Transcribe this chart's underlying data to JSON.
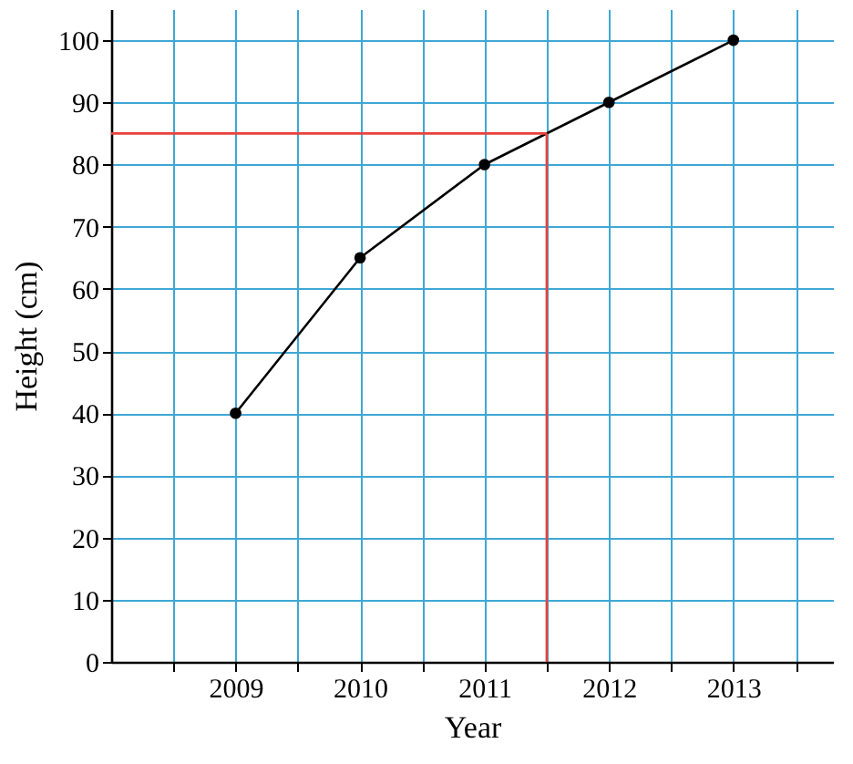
{
  "chart_data": {
    "type": "line",
    "xlabel": "Year",
    "ylabel": "Height (cm)",
    "x": [
      2009,
      2010,
      2011,
      2012,
      2013
    ],
    "series": [
      {
        "color": "#000000",
        "values": [
          40,
          65,
          80,
          90,
          100
        ]
      }
    ],
    "xlim": [
      2008,
      2013.8
    ],
    "xticks": [
      {
        "value": 2008.5,
        "label": null
      },
      2009,
      {
        "value": 2009.5,
        "label": null
      },
      2010,
      {
        "value": 2010.5,
        "label": null
      },
      2011,
      {
        "value": 2011.5,
        "label": null
      },
      2012,
      {
        "value": 2012.5,
        "label": null
      },
      2013,
      {
        "value": 2013.5,
        "label": null
      }
    ],
    "ylim": [
      0,
      105
    ],
    "yticks": [
      0,
      10,
      20,
      30,
      40,
      50,
      60,
      70,
      80,
      90,
      100
    ],
    "ref_lines": [
      {
        "axis": "y",
        "value": 85,
        "color": "#e8413c"
      },
      {
        "axis": "x",
        "value": 2011.5,
        "color": "#e8413c"
      }
    ],
    "grid": true,
    "marker": "circle",
    "legend": false
  }
}
